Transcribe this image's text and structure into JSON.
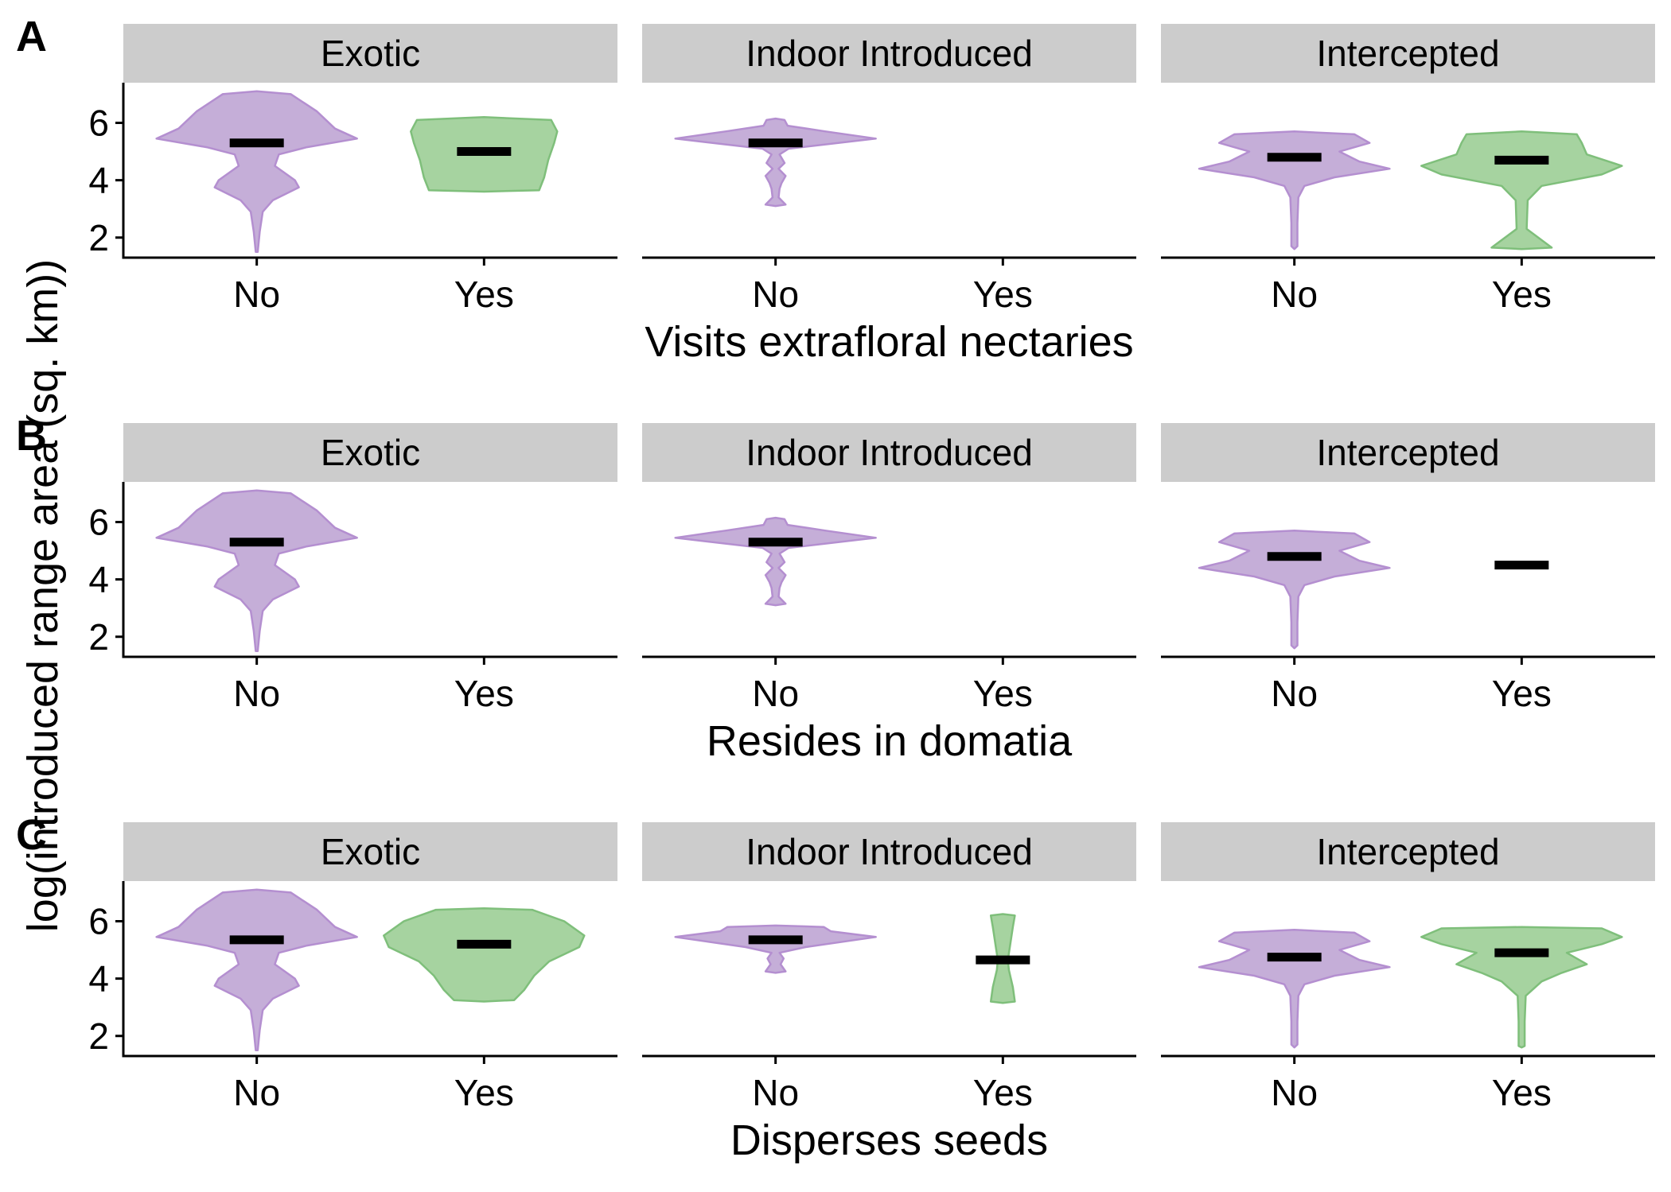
{
  "chart_data": {
    "type": "violin",
    "ylabel": "log(introduced range area (sq. km))",
    "yticks": [
      2,
      4,
      6
    ],
    "ylim": [
      1.3,
      7.4
    ],
    "colors": {
      "No": "#c5aed8",
      "Yes": "#a6d3a0",
      "No_outline": "#b48fd0",
      "Yes_outline": "#7fbf7b"
    },
    "rows": [
      {
        "letter": "A",
        "xlabel": "Visits extrafloral nectaries",
        "facets": [
          {
            "name": "Exotic",
            "groups": [
              {
                "category": "No",
                "median": 5.3,
                "profile": [
                  [
                    1.5,
                    0.01
                  ],
                  [
                    2.2,
                    0.03
                  ],
                  [
                    2.9,
                    0.06
                  ],
                  [
                    3.3,
                    0.16
                  ],
                  [
                    3.75,
                    0.42
                  ],
                  [
                    4.0,
                    0.38
                  ],
                  [
                    4.5,
                    0.18
                  ],
                  [
                    4.9,
                    0.22
                  ],
                  [
                    5.15,
                    0.5
                  ],
                  [
                    5.45,
                    1.0
                  ],
                  [
                    5.8,
                    0.78
                  ],
                  [
                    6.4,
                    0.6
                  ],
                  [
                    7.0,
                    0.34
                  ],
                  [
                    7.1,
                    0.0
                  ]
                ]
              },
              {
                "category": "Yes",
                "median": 5.0,
                "profile": [
                  [
                    3.6,
                    0.0
                  ],
                  [
                    3.65,
                    0.55
                  ],
                  [
                    4.1,
                    0.6
                  ],
                  [
                    4.7,
                    0.64
                  ],
                  [
                    5.3,
                    0.7
                  ],
                  [
                    5.7,
                    0.73
                  ],
                  [
                    6.1,
                    0.67
                  ],
                  [
                    6.2,
                    0.0
                  ]
                ]
              }
            ]
          },
          {
            "name": "Indoor Introduced",
            "groups": [
              {
                "category": "No",
                "median": 5.3,
                "profile": [
                  [
                    3.1,
                    0.0
                  ],
                  [
                    3.15,
                    0.1
                  ],
                  [
                    3.4,
                    0.03
                  ],
                  [
                    3.7,
                    0.04
                  ],
                  [
                    3.9,
                    0.06
                  ],
                  [
                    4.15,
                    0.1
                  ],
                  [
                    4.4,
                    0.03
                  ],
                  [
                    4.6,
                    0.09
                  ],
                  [
                    4.9,
                    0.04
                  ],
                  [
                    5.1,
                    0.13
                  ],
                  [
                    5.45,
                    1.0
                  ],
                  [
                    5.7,
                    0.5
                  ],
                  [
                    5.9,
                    0.12
                  ],
                  [
                    6.1,
                    0.09
                  ],
                  [
                    6.15,
                    0.0
                  ]
                ]
              }
            ]
          },
          {
            "name": "Intercepted",
            "groups": [
              {
                "category": "No",
                "median": 4.8,
                "profile": [
                  [
                    1.6,
                    0.0
                  ],
                  [
                    1.7,
                    0.03
                  ],
                  [
                    2.5,
                    0.03
                  ],
                  [
                    3.4,
                    0.04
                  ],
                  [
                    3.8,
                    0.1
                  ],
                  [
                    4.1,
                    0.4
                  ],
                  [
                    4.4,
                    0.95
                  ],
                  [
                    4.65,
                    0.65
                  ],
                  [
                    5.0,
                    0.45
                  ],
                  [
                    5.3,
                    0.75
                  ],
                  [
                    5.6,
                    0.6
                  ],
                  [
                    5.7,
                    0.0
                  ]
                ]
              },
              {
                "category": "Yes",
                "median": 4.7,
                "profile": [
                  [
                    1.6,
                    0.0
                  ],
                  [
                    1.65,
                    0.3
                  ],
                  [
                    2.3,
                    0.05
                  ],
                  [
                    3.3,
                    0.06
                  ],
                  [
                    3.8,
                    0.2
                  ],
                  [
                    4.2,
                    0.8
                  ],
                  [
                    4.5,
                    1.0
                  ],
                  [
                    4.9,
                    0.65
                  ],
                  [
                    5.3,
                    0.6
                  ],
                  [
                    5.6,
                    0.55
                  ],
                  [
                    5.7,
                    0.0
                  ]
                ]
              }
            ]
          }
        ]
      },
      {
        "letter": "B",
        "xlabel": "Resides in domatia",
        "facets": [
          {
            "name": "Exotic",
            "groups": [
              {
                "category": "No",
                "median": 5.3,
                "profile": [
                  [
                    1.5,
                    0.01
                  ],
                  [
                    2.2,
                    0.03
                  ],
                  [
                    2.9,
                    0.06
                  ],
                  [
                    3.3,
                    0.16
                  ],
                  [
                    3.75,
                    0.42
                  ],
                  [
                    4.0,
                    0.38
                  ],
                  [
                    4.5,
                    0.18
                  ],
                  [
                    4.9,
                    0.22
                  ],
                  [
                    5.15,
                    0.5
                  ],
                  [
                    5.45,
                    1.0
                  ],
                  [
                    5.8,
                    0.78
                  ],
                  [
                    6.4,
                    0.6
                  ],
                  [
                    7.0,
                    0.34
                  ],
                  [
                    7.1,
                    0.0
                  ]
                ]
              }
            ]
          },
          {
            "name": "Indoor Introduced",
            "groups": [
              {
                "category": "No",
                "median": 5.3,
                "profile": [
                  [
                    3.1,
                    0.0
                  ],
                  [
                    3.15,
                    0.1
                  ],
                  [
                    3.4,
                    0.03
                  ],
                  [
                    3.7,
                    0.04
                  ],
                  [
                    3.9,
                    0.06
                  ],
                  [
                    4.15,
                    0.1
                  ],
                  [
                    4.4,
                    0.03
                  ],
                  [
                    4.6,
                    0.09
                  ],
                  [
                    4.9,
                    0.04
                  ],
                  [
                    5.1,
                    0.13
                  ],
                  [
                    5.45,
                    1.0
                  ],
                  [
                    5.7,
                    0.5
                  ],
                  [
                    5.9,
                    0.12
                  ],
                  [
                    6.1,
                    0.09
                  ],
                  [
                    6.15,
                    0.0
                  ]
                ]
              }
            ]
          },
          {
            "name": "Intercepted",
            "groups": [
              {
                "category": "No",
                "median": 4.8,
                "profile": [
                  [
                    1.6,
                    0.0
                  ],
                  [
                    1.7,
                    0.03
                  ],
                  [
                    2.5,
                    0.03
                  ],
                  [
                    3.4,
                    0.04
                  ],
                  [
                    3.8,
                    0.1
                  ],
                  [
                    4.1,
                    0.4
                  ],
                  [
                    4.4,
                    0.95
                  ],
                  [
                    4.65,
                    0.65
                  ],
                  [
                    5.0,
                    0.45
                  ],
                  [
                    5.3,
                    0.75
                  ],
                  [
                    5.6,
                    0.6
                  ],
                  [
                    5.7,
                    0.0
                  ]
                ]
              },
              {
                "category": "Yes",
                "median": 4.5,
                "profile": []
              }
            ]
          }
        ]
      },
      {
        "letter": "C",
        "xlabel": "Disperses seeds",
        "facets": [
          {
            "name": "Exotic",
            "groups": [
              {
                "category": "No",
                "median": 5.35,
                "profile": [
                  [
                    1.5,
                    0.01
                  ],
                  [
                    2.2,
                    0.03
                  ],
                  [
                    2.9,
                    0.06
                  ],
                  [
                    3.3,
                    0.16
                  ],
                  [
                    3.75,
                    0.42
                  ],
                  [
                    4.0,
                    0.38
                  ],
                  [
                    4.5,
                    0.18
                  ],
                  [
                    4.9,
                    0.22
                  ],
                  [
                    5.15,
                    0.5
                  ],
                  [
                    5.45,
                    1.0
                  ],
                  [
                    5.8,
                    0.78
                  ],
                  [
                    6.4,
                    0.6
                  ],
                  [
                    7.0,
                    0.34
                  ],
                  [
                    7.1,
                    0.0
                  ]
                ]
              },
              {
                "category": "Yes",
                "median": 5.2,
                "profile": [
                  [
                    3.2,
                    0.0
                  ],
                  [
                    3.25,
                    0.3
                  ],
                  [
                    3.6,
                    0.4
                  ],
                  [
                    4.1,
                    0.5
                  ],
                  [
                    4.6,
                    0.65
                  ],
                  [
                    5.1,
                    0.95
                  ],
                  [
                    5.5,
                    1.0
                  ],
                  [
                    6.0,
                    0.8
                  ],
                  [
                    6.4,
                    0.48
                  ],
                  [
                    6.45,
                    0.0
                  ]
                ]
              }
            ]
          },
          {
            "name": "Indoor Introduced",
            "groups": [
              {
                "category": "No",
                "median": 5.35,
                "profile": [
                  [
                    4.2,
                    0.0
                  ],
                  [
                    4.25,
                    0.1
                  ],
                  [
                    4.5,
                    0.05
                  ],
                  [
                    4.7,
                    0.08
                  ],
                  [
                    4.9,
                    0.04
                  ],
                  [
                    5.1,
                    0.3
                  ],
                  [
                    5.45,
                    1.0
                  ],
                  [
                    5.65,
                    0.55
                  ],
                  [
                    5.8,
                    0.48
                  ],
                  [
                    5.85,
                    0.0
                  ]
                ]
              },
              {
                "category": "Yes",
                "median": 4.65,
                "profile": [
                  [
                    3.15,
                    0.0
                  ],
                  [
                    3.2,
                    0.12
                  ],
                  [
                    3.7,
                    0.1
                  ],
                  [
                    4.3,
                    0.06
                  ],
                  [
                    4.65,
                    0.05
                  ],
                  [
                    5.1,
                    0.07
                  ],
                  [
                    5.8,
                    0.1
                  ],
                  [
                    6.2,
                    0.12
                  ],
                  [
                    6.25,
                    0.0
                  ]
                ]
              }
            ]
          },
          {
            "name": "Intercepted",
            "groups": [
              {
                "category": "No",
                "median": 4.75,
                "profile": [
                  [
                    1.6,
                    0.0
                  ],
                  [
                    1.7,
                    0.03
                  ],
                  [
                    2.5,
                    0.03
                  ],
                  [
                    3.4,
                    0.04
                  ],
                  [
                    3.8,
                    0.1
                  ],
                  [
                    4.1,
                    0.4
                  ],
                  [
                    4.4,
                    0.95
                  ],
                  [
                    4.65,
                    0.65
                  ],
                  [
                    5.0,
                    0.45
                  ],
                  [
                    5.3,
                    0.75
                  ],
                  [
                    5.6,
                    0.6
                  ],
                  [
                    5.7,
                    0.0
                  ]
                ]
              },
              {
                "category": "Yes",
                "median": 4.9,
                "profile": [
                  [
                    1.6,
                    0.0
                  ],
                  [
                    1.65,
                    0.03
                  ],
                  [
                    2.5,
                    0.03
                  ],
                  [
                    3.4,
                    0.04
                  ],
                  [
                    3.9,
                    0.2
                  ],
                  [
                    4.2,
                    0.4
                  ],
                  [
                    4.5,
                    0.65
                  ],
                  [
                    4.9,
                    0.45
                  ],
                  [
                    5.2,
                    0.8
                  ],
                  [
                    5.45,
                    1.0
                  ],
                  [
                    5.75,
                    0.8
                  ],
                  [
                    5.8,
                    0.0
                  ]
                ]
              }
            ]
          }
        ]
      }
    ],
    "xcategories": [
      "No",
      "Yes"
    ],
    "grid": false,
    "legend": "none"
  }
}
